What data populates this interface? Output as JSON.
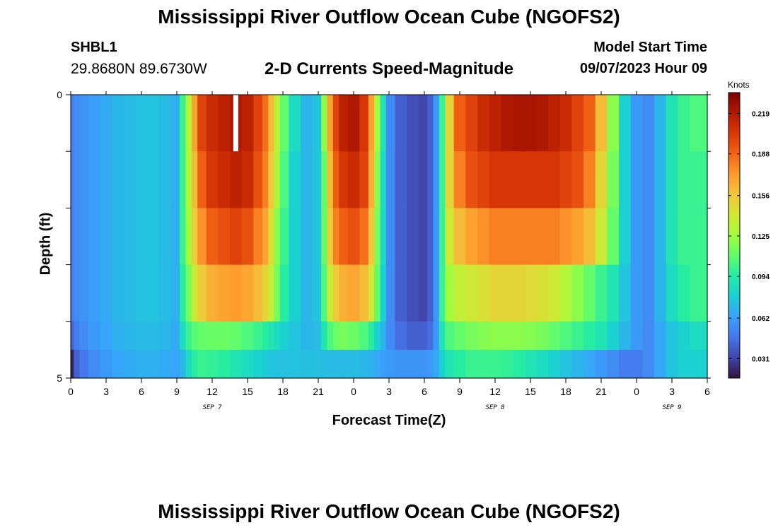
{
  "header": {
    "title": "Mississippi River Outflow Ocean Cube (NGOFS2)",
    "station": "SHBL1",
    "coordinates": "29.8680N  89.6730W",
    "subtitle": "2-D Currents Speed-Magnitude",
    "model_start_label": "Model Start Time",
    "model_start_value": "09/07/2023 Hour 09"
  },
  "footer": {
    "title": "Mississippi River Outflow Ocean Cube (NGOFS2)"
  },
  "chart_data": {
    "type": "heatmap",
    "xlabel": "Forecast Time(Z)",
    "ylabel": "Depth (ft)",
    "x_ticks": [
      "0",
      "3",
      "6",
      "9",
      "12",
      "15",
      "18",
      "21",
      "0",
      "3",
      "6",
      "9",
      "12",
      "15",
      "18",
      "21",
      "0",
      "3",
      "6"
    ],
    "x_unit": "hours since 09/07/2023 00Z",
    "x_range": [
      0,
      54
    ],
    "date_labels": [
      {
        "text": "SEP 7",
        "hour": 12
      },
      {
        "text": "SEP 8",
        "hour": 36
      },
      {
        "text": "SEP 9",
        "hour": 51
      }
    ],
    "y_range": [
      0,
      5
    ],
    "y_ticks": [
      "0",
      "5"
    ],
    "colorbar": {
      "label": "Knots",
      "min": 0.016,
      "max": 0.235,
      "ticks": [
        "0.031",
        "0.062",
        "0.094",
        "0.125",
        "0.156",
        "0.188",
        "0.219"
      ],
      "tick_values": [
        0.031,
        0.062,
        0.094,
        0.125,
        0.156,
        0.188,
        0.219
      ],
      "colors": [
        "#30123b",
        "#4145ab",
        "#4675ed",
        "#39a2fc",
        "#1bcfd4",
        "#24eca6",
        "#61fc6c",
        "#a4fc3b",
        "#d1e834",
        "#f3c63a",
        "#fe9b2d",
        "#f36315",
        "#d93806",
        "#b11901",
        "#7a0403"
      ]
    },
    "hours": [
      0,
      0.5,
      1,
      2,
      3,
      4,
      5,
      6,
      7,
      8,
      9,
      9.5,
      10,
      10.5,
      11,
      12,
      13,
      14,
      15,
      16,
      16.5,
      17,
      17.5,
      18,
      19,
      20,
      21,
      21.5,
      22,
      22.5,
      23,
      24,
      25,
      25.5,
      26,
      26.5,
      27,
      28,
      29,
      30,
      30.5,
      31,
      31.5,
      32,
      33,
      34,
      35,
      36,
      37,
      38,
      39,
      40,
      41,
      42,
      43,
      44,
      45,
      46,
      47,
      48,
      49,
      50,
      51,
      52,
      53,
      54
    ],
    "depth_layers": [
      {
        "depth": [
          0,
          1
        ],
        "values": [
          0.05,
          0.055,
          0.058,
          0.062,
          0.066,
          0.07,
          0.072,
          0.074,
          0.075,
          0.072,
          0.068,
          0.1,
          0.13,
          0.17,
          0.2,
          0.21,
          0.215,
          0.22,
          0.215,
          0.2,
          0.185,
          0.16,
          0.135,
          0.11,
          0.085,
          0.07,
          0.075,
          0.12,
          0.17,
          0.2,
          0.215,
          0.22,
          0.205,
          0.17,
          0.125,
          0.09,
          0.055,
          0.04,
          0.035,
          0.032,
          0.04,
          0.06,
          0.1,
          0.15,
          0.19,
          0.2,
          0.21,
          0.215,
          0.22,
          0.222,
          0.222,
          0.22,
          0.215,
          0.21,
          0.2,
          0.19,
          0.16,
          0.12,
          0.08,
          0.06,
          0.055,
          0.07,
          0.09,
          0.1,
          0.105,
          0.105
        ]
      },
      {
        "depth": [
          1,
          2
        ],
        "values": [
          0.05,
          0.055,
          0.058,
          0.062,
          0.066,
          0.07,
          0.072,
          0.074,
          0.075,
          0.072,
          0.068,
          0.1,
          0.13,
          0.16,
          0.19,
          0.205,
          0.21,
          0.215,
          0.21,
          0.195,
          0.18,
          0.155,
          0.13,
          0.105,
          0.08,
          0.07,
          0.075,
          0.11,
          0.16,
          0.19,
          0.205,
          0.21,
          0.2,
          0.165,
          0.12,
          0.085,
          0.055,
          0.04,
          0.035,
          0.032,
          0.04,
          0.06,
          0.1,
          0.15,
          0.18,
          0.195,
          0.2,
          0.205,
          0.205,
          0.205,
          0.205,
          0.205,
          0.205,
          0.2,
          0.195,
          0.18,
          0.15,
          0.115,
          0.08,
          0.06,
          0.055,
          0.07,
          0.09,
          0.1,
          0.1,
          0.1
        ]
      },
      {
        "depth": [
          2,
          3
        ],
        "values": [
          0.05,
          0.055,
          0.058,
          0.062,
          0.066,
          0.07,
          0.072,
          0.074,
          0.075,
          0.072,
          0.068,
          0.1,
          0.125,
          0.155,
          0.175,
          0.19,
          0.195,
          0.2,
          0.195,
          0.18,
          0.17,
          0.145,
          0.12,
          0.1,
          0.08,
          0.07,
          0.075,
          0.11,
          0.155,
          0.18,
          0.19,
          0.195,
          0.185,
          0.155,
          0.115,
          0.085,
          0.055,
          0.04,
          0.035,
          0.032,
          0.04,
          0.06,
          0.1,
          0.14,
          0.16,
          0.17,
          0.175,
          0.18,
          0.18,
          0.18,
          0.18,
          0.18,
          0.18,
          0.175,
          0.17,
          0.16,
          0.14,
          0.11,
          0.08,
          0.06,
          0.055,
          0.07,
          0.09,
          0.1,
          0.1,
          0.1
        ]
      },
      {
        "depth": [
          3,
          4
        ],
        "values": [
          0.05,
          0.055,
          0.058,
          0.062,
          0.066,
          0.07,
          0.072,
          0.074,
          0.075,
          0.072,
          0.068,
          0.095,
          0.115,
          0.14,
          0.155,
          0.165,
          0.17,
          0.172,
          0.168,
          0.16,
          0.15,
          0.135,
          0.115,
          0.095,
          0.08,
          0.07,
          0.075,
          0.105,
          0.14,
          0.155,
          0.165,
          0.168,
          0.16,
          0.14,
          0.11,
          0.08,
          0.055,
          0.04,
          0.035,
          0.032,
          0.04,
          0.06,
          0.1,
          0.125,
          0.135,
          0.14,
          0.145,
          0.15,
          0.15,
          0.15,
          0.148,
          0.145,
          0.14,
          0.13,
          0.12,
          0.11,
          0.1,
          0.09,
          0.075,
          0.06,
          0.055,
          0.07,
          0.085,
          0.095,
          0.1,
          0.1
        ]
      },
      {
        "depth": [
          4,
          4.5
        ],
        "values": [
          0.04,
          0.05,
          0.055,
          0.06,
          0.064,
          0.068,
          0.07,
          0.072,
          0.072,
          0.07,
          0.066,
          0.085,
          0.1,
          0.108,
          0.11,
          0.112,
          0.112,
          0.11,
          0.105,
          0.1,
          0.095,
          0.09,
          0.085,
          0.08,
          0.075,
          0.07,
          0.072,
          0.09,
          0.105,
          0.112,
          0.115,
          0.112,
          0.105,
          0.095,
          0.08,
          0.07,
          0.055,
          0.045,
          0.04,
          0.04,
          0.045,
          0.06,
          0.09,
          0.105,
          0.11,
          0.115,
          0.118,
          0.12,
          0.12,
          0.12,
          0.118,
          0.115,
          0.11,
          0.105,
          0.1,
          0.095,
          0.09,
          0.08,
          0.07,
          0.06,
          0.055,
          0.065,
          0.075,
          0.08,
          0.085,
          0.085
        ]
      },
      {
        "depth": [
          4.5,
          5
        ],
        "values": [
          0.02,
          0.04,
          0.048,
          0.055,
          0.06,
          0.064,
          0.066,
          0.068,
          0.068,
          0.066,
          0.064,
          0.07,
          0.085,
          0.095,
          0.1,
          0.098,
          0.095,
          0.09,
          0.085,
          0.08,
          0.078,
          0.075,
          0.074,
          0.074,
          0.074,
          0.073,
          0.073,
          0.072,
          0.072,
          0.072,
          0.072,
          0.072,
          0.07,
          0.068,
          0.065,
          0.062,
          0.06,
          0.058,
          0.058,
          0.058,
          0.06,
          0.065,
          0.08,
          0.09,
          0.095,
          0.1,
          0.1,
          0.1,
          0.098,
          0.095,
          0.09,
          0.085,
          0.08,
          0.075,
          0.07,
          0.065,
          0.06,
          0.055,
          0.05,
          0.05,
          0.055,
          0.065,
          0.075,
          0.08,
          0.08,
          0.08
        ]
      }
    ],
    "missing_cells": [
      {
        "hour": 14,
        "depth": [
          0,
          1
        ]
      }
    ]
  }
}
